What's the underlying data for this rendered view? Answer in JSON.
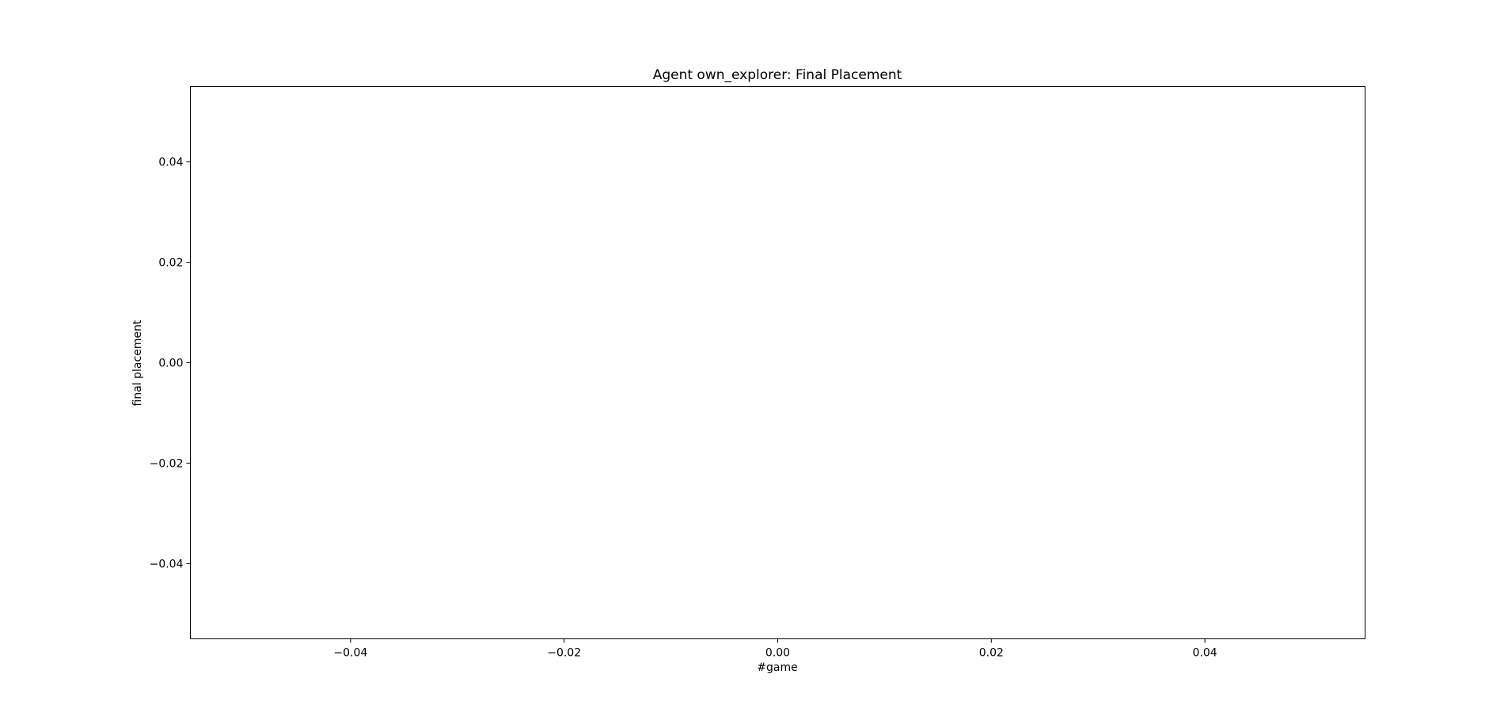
{
  "chart_data": {
    "type": "line",
    "title": "Agent own_explorer: Final Placement",
    "xlabel": "#game",
    "ylabel": "final placement",
    "xlim": [
      -0.055,
      0.055
    ],
    "ylim": [
      -0.055,
      0.055
    ],
    "x_ticks": [
      -0.04,
      -0.02,
      0.0,
      0.02,
      0.04
    ],
    "x_tick_labels": [
      "−0.04",
      "−0.02",
      "0.00",
      "0.02",
      "0.04"
    ],
    "y_ticks": [
      0.04,
      0.02,
      0.0,
      -0.02,
      -0.04
    ],
    "y_tick_labels": [
      "0.04",
      "0.02",
      "0.00",
      "−0.02",
      "−0.04"
    ],
    "series": [],
    "grid": false,
    "colors": {
      "axis": "#000000",
      "background": "#ffffff"
    }
  }
}
